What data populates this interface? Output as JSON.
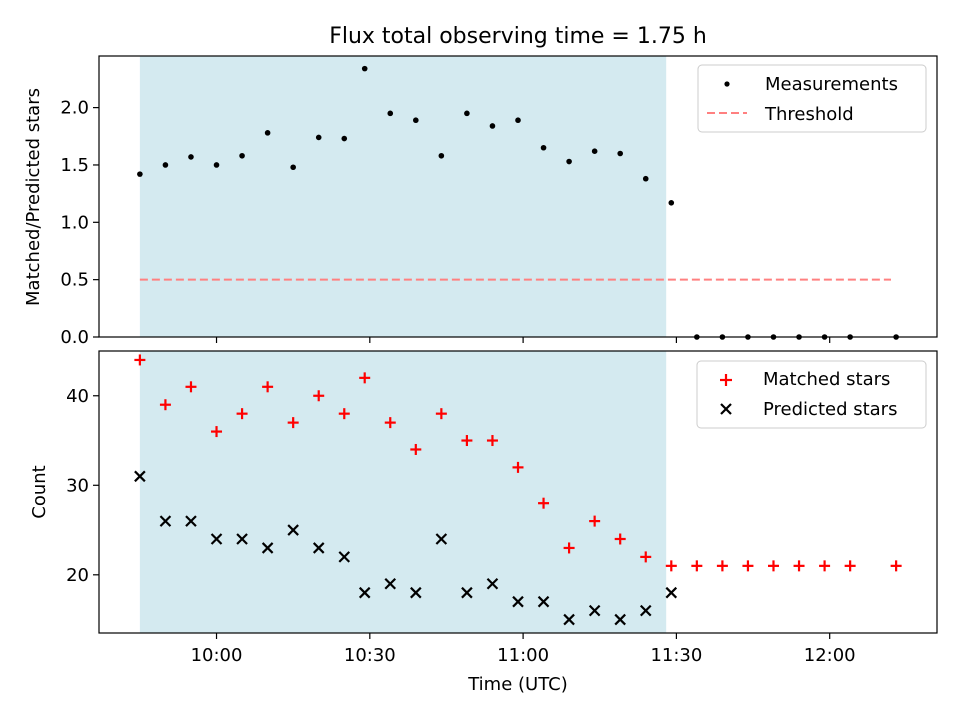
{
  "figure": {
    "title": "Flux total observing time = 1.75 h",
    "xlabel": "Time (UTC)"
  },
  "chart_data": [
    {
      "type": "scatter",
      "panel": "top",
      "ylabel": "Matched/Predicted stars",
      "xlim": [
        "09:37",
        "12:21"
      ],
      "ylim": [
        0,
        2.45
      ],
      "yticks": [
        "0.0",
        "0.5",
        "1.0",
        "1.5",
        "2.0"
      ],
      "xticks": [
        "10:00",
        "10:30",
        "11:00",
        "11:30",
        "12:00"
      ],
      "observing_window": [
        "09:45",
        "11:28"
      ],
      "observing_window_color": "#d4eaf0",
      "threshold": 0.5,
      "threshold_range": [
        "09:45",
        "12:12"
      ],
      "series": [
        {
          "name": "Measurements",
          "marker": "dot",
          "color": "#000000",
          "points": [
            [
              "09:45",
              1.42
            ],
            [
              "09:50",
              1.5
            ],
            [
              "09:55",
              1.57
            ],
            [
              "10:00",
              1.5
            ],
            [
              "10:05",
              1.58
            ],
            [
              "10:10",
              1.78
            ],
            [
              "10:15",
              1.48
            ],
            [
              "10:20",
              1.74
            ],
            [
              "10:25",
              1.73
            ],
            [
              "10:29",
              2.34
            ],
            [
              "10:34",
              1.95
            ],
            [
              "10:39",
              1.89
            ],
            [
              "10:44",
              1.58
            ],
            [
              "10:49",
              1.95
            ],
            [
              "10:54",
              1.84
            ],
            [
              "10:59",
              1.89
            ],
            [
              "11:04",
              1.65
            ],
            [
              "11:09",
              1.53
            ],
            [
              "11:14",
              1.62
            ],
            [
              "11:19",
              1.6
            ],
            [
              "11:24",
              1.38
            ],
            [
              "11:29",
              1.17
            ],
            [
              "11:34",
              0
            ],
            [
              "11:39",
              0
            ],
            [
              "11:44",
              0
            ],
            [
              "11:49",
              0
            ],
            [
              "11:54",
              0
            ],
            [
              "11:59",
              0
            ],
            [
              "12:04",
              0
            ],
            [
              "12:13",
              0
            ]
          ]
        },
        {
          "name": "Threshold",
          "marker": "dashed-line",
          "color": "#ff8080"
        }
      ],
      "legend": "top-right"
    },
    {
      "type": "scatter",
      "panel": "bottom",
      "ylabel": "Count",
      "xlim": [
        "09:37",
        "12:21"
      ],
      "ylim": [
        13.5,
        45
      ],
      "yticks": [
        "20",
        "30",
        "40"
      ],
      "xticks": [
        "10:00",
        "10:30",
        "11:00",
        "11:30",
        "12:00"
      ],
      "observing_window": [
        "09:45",
        "11:28"
      ],
      "observing_window_color": "#d4eaf0",
      "series": [
        {
          "name": "Matched stars",
          "marker": "plus",
          "color": "#ff0000",
          "points": [
            [
              "09:45",
              44
            ],
            [
              "09:50",
              39
            ],
            [
              "09:55",
              41
            ],
            [
              "10:00",
              36
            ],
            [
              "10:05",
              38
            ],
            [
              "10:10",
              41
            ],
            [
              "10:15",
              37
            ],
            [
              "10:20",
              40
            ],
            [
              "10:25",
              38
            ],
            [
              "10:29",
              42
            ],
            [
              "10:34",
              37
            ],
            [
              "10:39",
              34
            ],
            [
              "10:44",
              38
            ],
            [
              "10:49",
              35
            ],
            [
              "10:54",
              35
            ],
            [
              "10:59",
              32
            ],
            [
              "11:04",
              28
            ],
            [
              "11:09",
              23
            ],
            [
              "11:14",
              26
            ],
            [
              "11:19",
              24
            ],
            [
              "11:24",
              22
            ],
            [
              "11:29",
              21
            ],
            [
              "11:34",
              21
            ],
            [
              "11:39",
              21
            ],
            [
              "11:44",
              21
            ],
            [
              "11:49",
              21
            ],
            [
              "11:54",
              21
            ],
            [
              "11:59",
              21
            ],
            [
              "12:04",
              21
            ],
            [
              "12:13",
              21
            ]
          ]
        },
        {
          "name": "Predicted stars",
          "marker": "x",
          "color": "#000000",
          "points": [
            [
              "09:45",
              31
            ],
            [
              "09:50",
              26
            ],
            [
              "09:55",
              26
            ],
            [
              "10:00",
              24
            ],
            [
              "10:05",
              24
            ],
            [
              "10:10",
              23
            ],
            [
              "10:15",
              25
            ],
            [
              "10:20",
              23
            ],
            [
              "10:25",
              22
            ],
            [
              "10:29",
              18
            ],
            [
              "10:34",
              19
            ],
            [
              "10:39",
              18
            ],
            [
              "10:44",
              24
            ],
            [
              "10:49",
              18
            ],
            [
              "10:54",
              19
            ],
            [
              "10:59",
              17
            ],
            [
              "11:04",
              17
            ],
            [
              "11:09",
              15
            ],
            [
              "11:14",
              16
            ],
            [
              "11:19",
              15
            ],
            [
              "11:24",
              16
            ],
            [
              "11:29",
              18
            ]
          ]
        }
      ],
      "legend": "top-right"
    }
  ]
}
